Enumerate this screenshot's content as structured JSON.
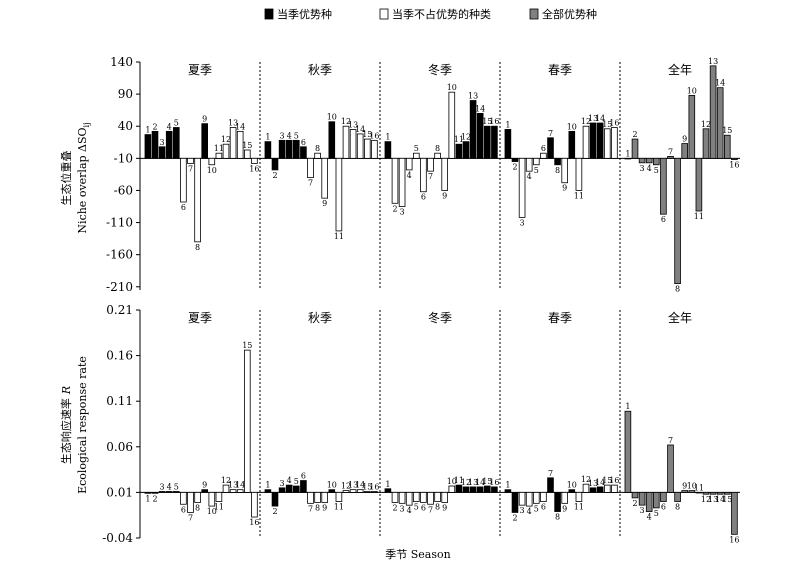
{
  "legend": [
    {
      "label": "当季优势种",
      "fill": "#000000"
    },
    {
      "label": "当季不占优势的种类",
      "fill": "#ffffff"
    },
    {
      "label": "全部优势种",
      "fill": "#808080"
    }
  ],
  "xlabel": "季节 Season",
  "seasons": [
    "夏季",
    "秋季",
    "冬季",
    "春季",
    "全年"
  ],
  "colors": {
    "dominant": "#000000",
    "nondominant": "#ffffff",
    "annual": "#808080"
  },
  "chart_data": [
    {
      "type": "bar",
      "ylabel_zh": "生态位重叠",
      "ylabel_en": "Niche overlap ΔSO",
      "ylabel_sub": "ij",
      "yticks": [
        140,
        90,
        40,
        -10,
        -60,
        -110,
        -160,
        -210
      ],
      "ylim": [
        -215,
        140
      ],
      "baseline": -10,
      "categories": [
        "1",
        "2",
        "3",
        "4",
        "5",
        "6",
        "7",
        "8",
        "9",
        "10",
        "11",
        "12",
        "13",
        "14",
        "15",
        "16"
      ],
      "series": [
        {
          "season": "夏季",
          "values": [
            27,
            32,
            8,
            32,
            38,
            -78,
            -18,
            -140,
            44,
            -20,
            -2,
            12,
            38,
            32,
            3,
            -18
          ],
          "types": [
            "d",
            "d",
            "d",
            "d",
            "d",
            "n",
            "n",
            "n",
            "d",
            "n",
            "n",
            "n",
            "n",
            "n",
            "n",
            "n"
          ]
        },
        {
          "season": "秋季",
          "values": [
            16,
            -28,
            18,
            18,
            18,
            8,
            -40,
            -2,
            -72,
            47,
            -123,
            40,
            35,
            28,
            20,
            18
          ],
          "types": [
            "d",
            "d",
            "d",
            "d",
            "d",
            "d",
            "n",
            "n",
            "n",
            "d",
            "n",
            "n",
            "n",
            "n",
            "n",
            "n"
          ]
        },
        {
          "season": "冬季",
          "values": [
            16,
            -80,
            -85,
            -28,
            -2,
            -62,
            -30,
            -2,
            -60,
            93,
            12,
            16,
            80,
            60,
            40,
            40
          ],
          "types": [
            "d",
            "n",
            "n",
            "n",
            "n",
            "n",
            "n",
            "n",
            "n",
            "n",
            "d",
            "d",
            "d",
            "d",
            "d",
            "d"
          ]
        },
        {
          "season": "春季",
          "values": [
            35,
            -15,
            -102,
            -30,
            -20,
            -2,
            22,
            -20,
            -48,
            32,
            -60,
            40,
            45,
            45,
            36,
            38
          ],
          "types": [
            "d",
            "d",
            "n",
            "n",
            "n",
            "n",
            "d",
            "d",
            "n",
            "d",
            "n",
            "n",
            "d",
            "d",
            "n",
            "n"
          ]
        },
        {
          "season": "全年",
          "values": [
            -10,
            20,
            -17,
            -17,
            -20,
            -97,
            -7,
            -205,
            13,
            88,
            -92,
            36,
            134,
            100,
            26,
            -12
          ],
          "types": [
            "a",
            "a",
            "a",
            "a",
            "a",
            "a",
            "a",
            "a",
            "a",
            "a",
            "a",
            "a",
            "a",
            "a",
            "a",
            "a"
          ]
        }
      ]
    },
    {
      "type": "bar",
      "ylabel_zh": "生态响应速率",
      "ylabel_zh_var": "R",
      "ylabel_en": "Ecological response rate",
      "yticks": [
        "0.21",
        "0.16",
        "0.11",
        "0.06",
        "0.01",
        "-0.04"
      ],
      "ytick_values": [
        0.21,
        0.16,
        0.11,
        0.06,
        0.01,
        -0.04
      ],
      "ylim": [
        -0.04,
        0.21
      ],
      "baseline": 0.01,
      "categories": [
        "1",
        "2",
        "3",
        "4",
        "5",
        "6",
        "7",
        "8",
        "9",
        "10",
        "11",
        "12",
        "13",
        "14",
        "15",
        "16"
      ],
      "series": [
        {
          "season": "夏季",
          "values": [
            0.009,
            0.009,
            0.011,
            0.011,
            0.011,
            -0.003,
            -0.012,
            -0.001,
            0.013,
            -0.005,
            0.0,
            0.018,
            0.013,
            0.013,
            0.166,
            -0.017
          ],
          "types": [
            "d",
            "d",
            "d",
            "d",
            "d",
            "n",
            "n",
            "n",
            "d",
            "n",
            "n",
            "n",
            "n",
            "n",
            "n",
            "n"
          ]
        },
        {
          "season": "秋季",
          "values": [
            0.013,
            -0.005,
            0.015,
            0.018,
            0.017,
            0.023,
            -0.002,
            -0.001,
            -0.001,
            0.013,
            0.0,
            0.012,
            0.013,
            0.013,
            0.011,
            0.011
          ],
          "types": [
            "d",
            "d",
            "d",
            "d",
            "d",
            "d",
            "n",
            "n",
            "n",
            "d",
            "n",
            "n",
            "n",
            "n",
            "n",
            "n"
          ]
        },
        {
          "season": "冬季",
          "values": [
            0.014,
            -0.001,
            -0.002,
            -0.004,
            0.0,
            -0.001,
            -0.003,
            0.0,
            -0.001,
            0.017,
            0.018,
            0.016,
            0.016,
            0.016,
            0.017,
            0.016
          ],
          "types": [
            "d",
            "n",
            "n",
            "n",
            "n",
            "n",
            "n",
            "n",
            "n",
            "n",
            "d",
            "d",
            "d",
            "d",
            "d",
            "d"
          ]
        },
        {
          "season": "春季",
          "values": [
            0.013,
            -0.012,
            -0.004,
            -0.005,
            -0.002,
            0.0,
            0.026,
            -0.011,
            -0.002,
            0.013,
            0.0,
            0.019,
            0.015,
            0.016,
            0.018,
            0.018
          ],
          "types": [
            "d",
            "d",
            "n",
            "n",
            "n",
            "n",
            "d",
            "d",
            "n",
            "d",
            "n",
            "n",
            "d",
            "d",
            "n",
            "n"
          ]
        },
        {
          "season": "全年",
          "values": [
            0.099,
            0.004,
            -0.004,
            -0.011,
            -0.007,
            0.0,
            0.062,
            0.0,
            0.012,
            0.012,
            0.01,
            0.008,
            0.008,
            0.008,
            0.008,
            -0.036
          ],
          "types": [
            "a",
            "a",
            "a",
            "a",
            "a",
            "a",
            "a",
            "a",
            "a",
            "a",
            "a",
            "a",
            "a",
            "a",
            "a",
            "a"
          ]
        }
      ]
    }
  ]
}
